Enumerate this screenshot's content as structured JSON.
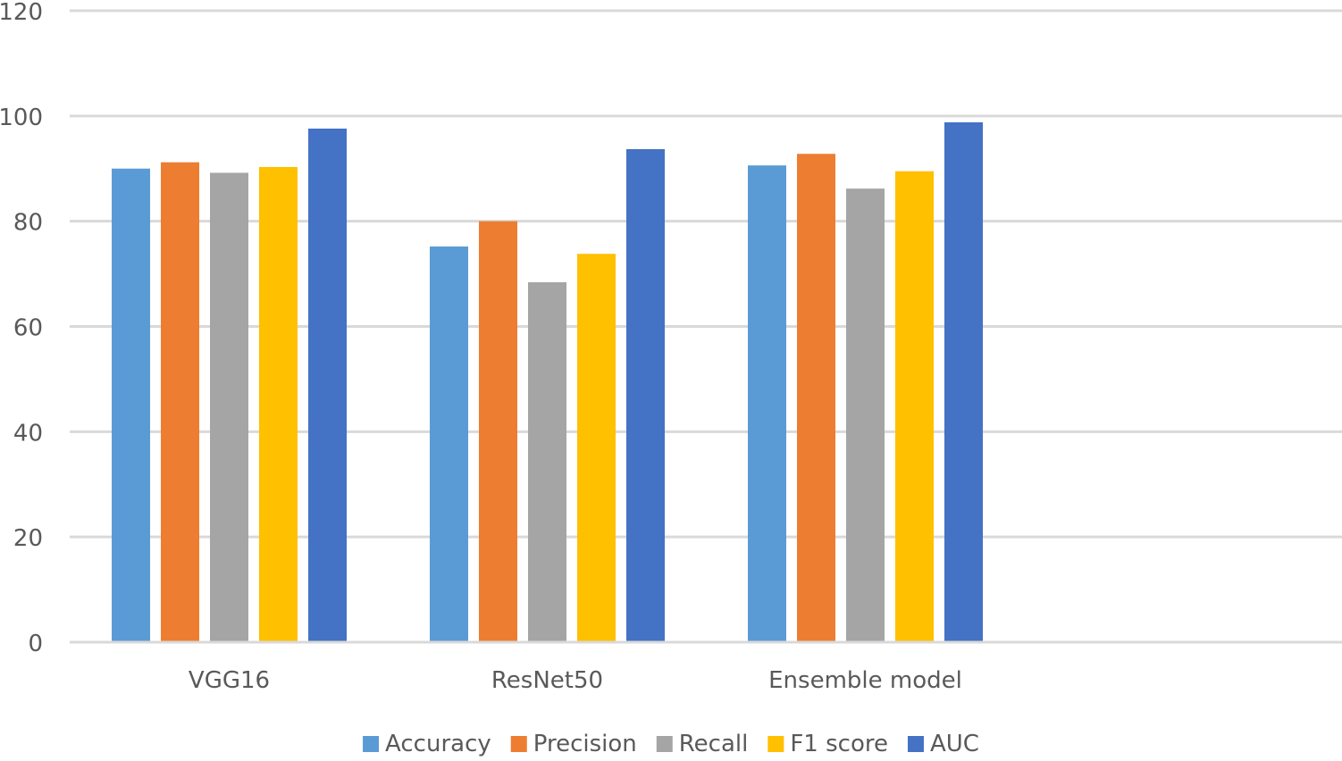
{
  "chart_data": {
    "type": "bar",
    "title": "",
    "xlabel": "",
    "ylabel": "",
    "categories": [
      "VGG16",
      "ResNet50",
      "Ensemble model"
    ],
    "series": [
      {
        "name": "Accuracy",
        "color": "#5b9bd5",
        "values": [
          90,
          75.2,
          90.6
        ]
      },
      {
        "name": "Precision",
        "color": "#ed7d31",
        "values": [
          91.2,
          80,
          92.8
        ]
      },
      {
        "name": "Recall",
        "color": "#a5a5a5",
        "values": [
          89.2,
          68.4,
          86.2
        ]
      },
      {
        "name": "F1 score",
        "color": "#ffc000",
        "values": [
          90.3,
          73.8,
          89.5
        ]
      },
      {
        "name": "AUC",
        "color": "#4472c4",
        "values": [
          97.6,
          93.7,
          98.8
        ]
      }
    ],
    "ylim": [
      0,
      120
    ],
    "yticks": [
      0,
      20,
      40,
      60,
      80,
      100,
      120
    ],
    "grid": true,
    "legend_position": "bottom"
  }
}
